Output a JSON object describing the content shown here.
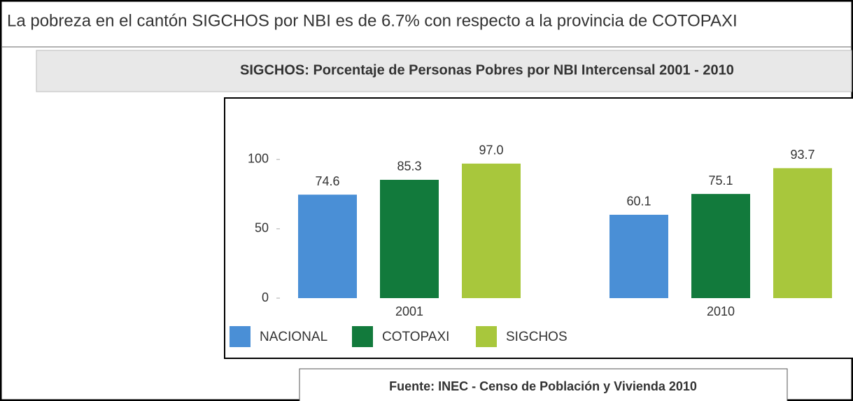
{
  "header": "La pobreza en el cantón SIGCHOS por NBI es de 6.7% con respecto a la provincia de COTOPAXI",
  "chart_data": {
    "type": "bar",
    "title": "SIGCHOS: Porcentaje de Personas Pobres por NBI Intercensal 2001 - 2010",
    "categories": [
      "2001",
      "2010"
    ],
    "series": [
      {
        "name": "NACIONAL",
        "color": "#4a8fd6",
        "values": [
          74.6,
          60.1
        ]
      },
      {
        "name": "COTOPAXI",
        "color": "#127a3c",
        "values": [
          85.3,
          75.1
        ]
      },
      {
        "name": "SIGCHOS",
        "color": "#a8c73c",
        "values": [
          97.0,
          93.7
        ],
        "value_labels": [
          "97.0",
          "93.7"
        ]
      }
    ],
    "ylim": [
      0,
      110
    ],
    "yticks": [
      0,
      50,
      100
    ],
    "grid": false,
    "legend": "bottom"
  },
  "source": "Fuente: INEC -  Censo de Población y Vivienda  2010"
}
